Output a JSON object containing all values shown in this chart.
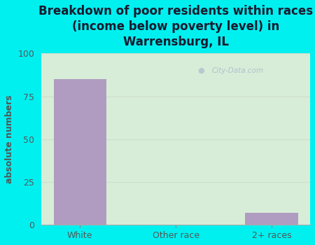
{
  "title": "Breakdown of poor residents within races\n(income below poverty level) in\nWarrensburg, IL",
  "categories": [
    "White",
    "Other race",
    "2+ races"
  ],
  "values": [
    85,
    0,
    7
  ],
  "bar_color": "#b09cc0",
  "ylabel": "absolute numbers",
  "ylim": [
    0,
    100
  ],
  "yticks": [
    0,
    25,
    50,
    75,
    100
  ],
  "bg_outer": "#00f0f0",
  "bg_inner_color": "#d8edd8",
  "title_fontsize": 12,
  "label_fontsize": 9,
  "tick_label_color": "#555555",
  "title_color": "#1a1a2e",
  "ylabel_color": "#555555",
  "watermark": "City-Data.com",
  "grid_color": "#ccddcc",
  "figsize": [
    4.5,
    3.5
  ],
  "dpi": 100
}
